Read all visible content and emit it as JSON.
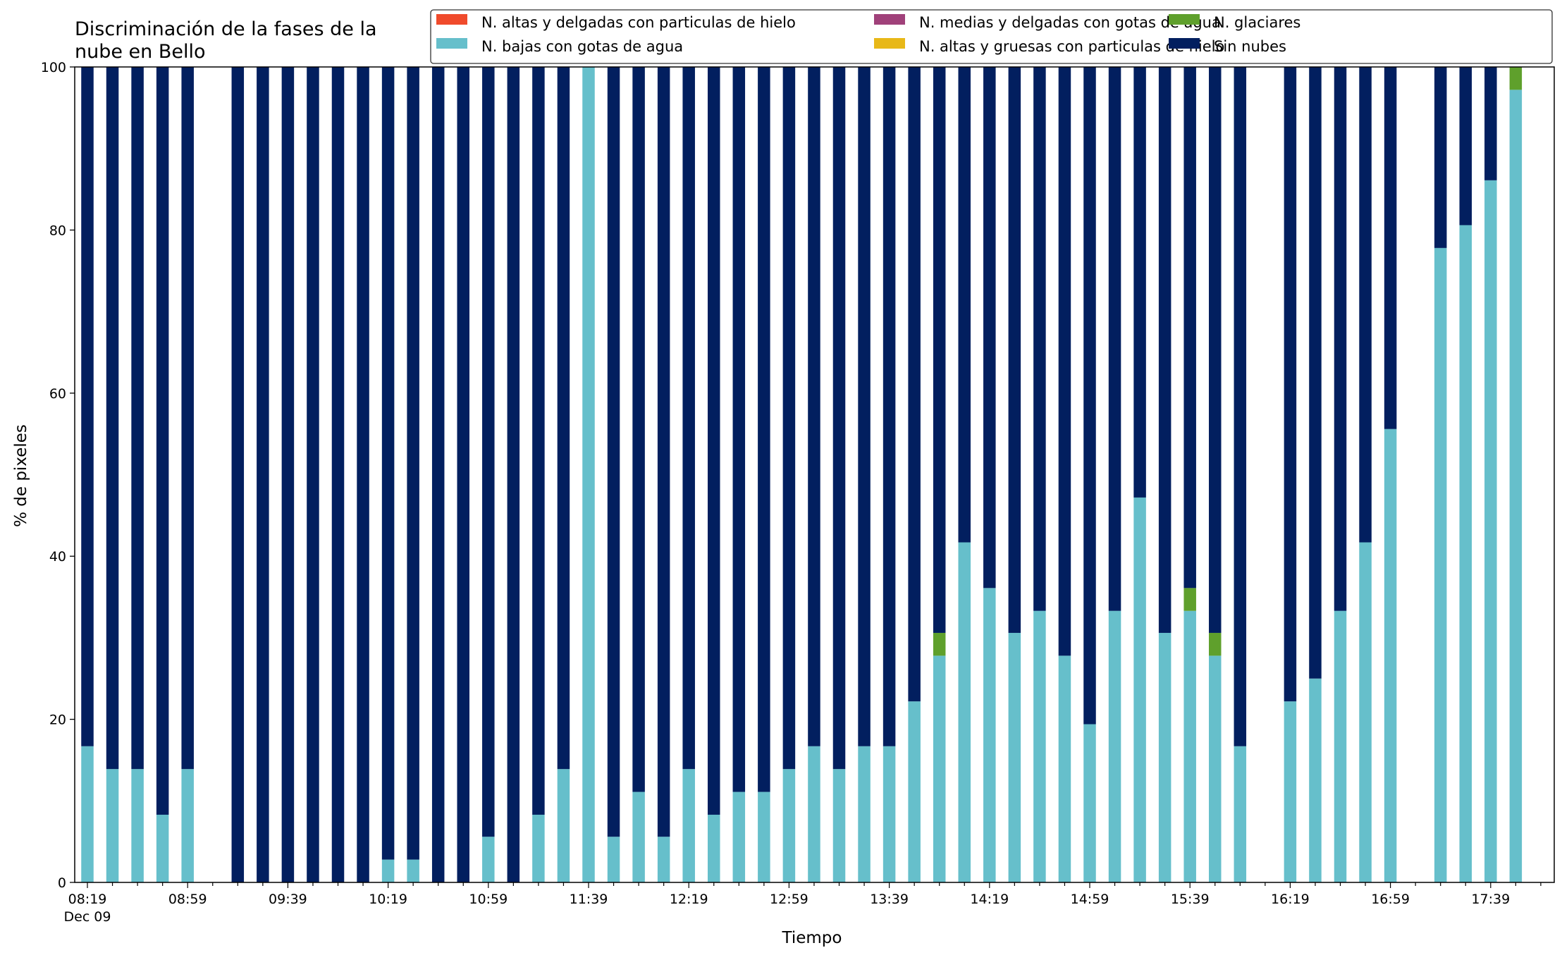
{
  "chart_data": {
    "type": "bar",
    "stacked": true,
    "title_line1": "Discriminación de la fases de la",
    "title_line2": "nube en Bello",
    "xlabel": "Tiempo",
    "ylabel": "% de pixeles",
    "ylim": [
      0,
      100
    ],
    "yticks": [
      "0",
      "20",
      "40",
      "60",
      "80",
      "100"
    ],
    "xtick_labels": [
      "08:19",
      "08:59",
      "09:39",
      "10:19",
      "10:59",
      "11:39",
      "12:19",
      "12:59",
      "13:39",
      "14:19",
      "14:59",
      "15:39",
      "16:19",
      "16:59",
      "17:39"
    ],
    "date_label": "Dec 09",
    "grid": false,
    "legend_position": "top-right",
    "interval_minutes": 10,
    "slots": [
      "08:19",
      "08:29",
      "08:39",
      "08:49",
      "08:59",
      "09:09",
      "09:19",
      "09:29",
      "09:39",
      "09:49",
      "09:59",
      "10:09",
      "10:19",
      "10:29",
      "10:39",
      "10:49",
      "10:59",
      "11:09",
      "11:19",
      "11:29",
      "11:39",
      "11:49",
      "11:59",
      "12:09",
      "12:19",
      "12:29",
      "12:39",
      "12:49",
      "12:59",
      "13:09",
      "13:19",
      "13:29",
      "13:39",
      "13:49",
      "13:59",
      "14:09",
      "14:19",
      "14:29",
      "14:39",
      "14:49",
      "14:59",
      "15:09",
      "15:19",
      "15:29",
      "15:39",
      "15:49",
      "15:59",
      "16:09",
      "16:19",
      "16:29",
      "16:39",
      "16:49",
      "16:59",
      "17:09",
      "17:19",
      "17:29",
      "17:39",
      "17:49"
    ],
    "series": [
      {
        "name": "N. altas y delgadas con particulas de hielo",
        "color": "#f04b2c",
        "values": [
          0,
          0,
          0,
          0,
          0,
          null,
          0,
          0,
          0,
          0,
          0,
          0,
          0,
          0,
          0,
          0,
          0,
          0,
          0,
          0,
          0,
          0,
          0,
          0,
          0,
          0,
          0,
          0,
          0,
          0,
          0,
          0,
          0,
          0,
          0,
          0,
          0,
          0,
          0,
          0,
          0,
          0,
          0,
          0,
          0,
          0,
          0,
          null,
          0,
          0,
          0,
          0,
          0,
          null,
          0,
          0,
          0,
          0
        ]
      },
      {
        "name": "N. altas y gruesas con particulas de hielo",
        "color": "#e8b818",
        "values": [
          0,
          0,
          0,
          0,
          0,
          null,
          0,
          0,
          0,
          0,
          0,
          0,
          0,
          0,
          0,
          0,
          0,
          0,
          0,
          0,
          0,
          0,
          0,
          0,
          0,
          0,
          0,
          0,
          0,
          0,
          0,
          0,
          0,
          0,
          0,
          0,
          0,
          0,
          0,
          0,
          0,
          0,
          0,
          0,
          0,
          0,
          0,
          null,
          0,
          0,
          0,
          0,
          0,
          null,
          0,
          0,
          0,
          0
        ]
      },
      {
        "name": "N. bajas con gotas de agua",
        "color": "#66bfcb",
        "values": [
          16.7,
          13.9,
          13.9,
          8.3,
          13.9,
          null,
          0,
          0,
          0,
          0,
          0,
          0,
          2.8,
          2.8,
          0,
          0,
          5.6,
          0,
          8.3,
          13.9,
          100,
          5.6,
          11.1,
          5.6,
          13.9,
          8.3,
          11.1,
          11.1,
          13.9,
          16.7,
          13.9,
          16.7,
          16.7,
          22.2,
          27.8,
          41.7,
          36.1,
          30.6,
          33.3,
          27.8,
          19.4,
          33.3,
          47.2,
          30.6,
          33.3,
          27.8,
          16.7,
          null,
          22.2,
          25.0,
          33.3,
          41.7,
          55.6,
          null,
          77.8,
          80.6,
          86.1,
          97.2
        ]
      },
      {
        "name": "N. glaciares",
        "color": "#5fa02c",
        "values": [
          0,
          0,
          0,
          0,
          0,
          null,
          0,
          0,
          0,
          0,
          0,
          0,
          0,
          0,
          0,
          0,
          0,
          0,
          0,
          0,
          0,
          0,
          0,
          0,
          0,
          0,
          0,
          0,
          0,
          0,
          0,
          0,
          0,
          0,
          2.8,
          0,
          0,
          0,
          0,
          0,
          0,
          0,
          0,
          0,
          2.8,
          2.8,
          0,
          null,
          0,
          0,
          0,
          0,
          0,
          null,
          0,
          0,
          0,
          2.8
        ]
      },
      {
        "name": "N. medias y delgadas con gotas de agua",
        "color": "#a0417a",
        "values": [
          0,
          0,
          0,
          0,
          0,
          null,
          0,
          0,
          0,
          0,
          0,
          0,
          0,
          0,
          0,
          0,
          0,
          0,
          0,
          0,
          0,
          0,
          0,
          0,
          0,
          0,
          0,
          0,
          0,
          0,
          0,
          0,
          0,
          0,
          0,
          0,
          0,
          0,
          0,
          0,
          0,
          0,
          0,
          0,
          0,
          0,
          0,
          null,
          0,
          0,
          0,
          0,
          0,
          null,
          0,
          0,
          0,
          0
        ]
      },
      {
        "name": "Sin nubes",
        "color": "#021f5f",
        "values": [
          83.3,
          86.1,
          86.1,
          91.7,
          86.1,
          null,
          100,
          100,
          100,
          100,
          100,
          100,
          97.2,
          97.2,
          100,
          100,
          94.4,
          100,
          91.7,
          86.1,
          0,
          94.4,
          88.9,
          94.4,
          86.1,
          91.7,
          88.9,
          88.9,
          86.1,
          83.3,
          86.1,
          83.3,
          83.3,
          77.8,
          69.4,
          58.3,
          63.9,
          69.4,
          66.7,
          72.2,
          80.6,
          66.7,
          52.8,
          69.4,
          63.9,
          69.4,
          83.3,
          null,
          77.8,
          75.0,
          66.7,
          58.3,
          44.4,
          null,
          22.2,
          19.4,
          13.9,
          0
        ]
      }
    ],
    "legend_order": [
      0,
      2,
      4,
      1,
      3,
      5
    ]
  }
}
